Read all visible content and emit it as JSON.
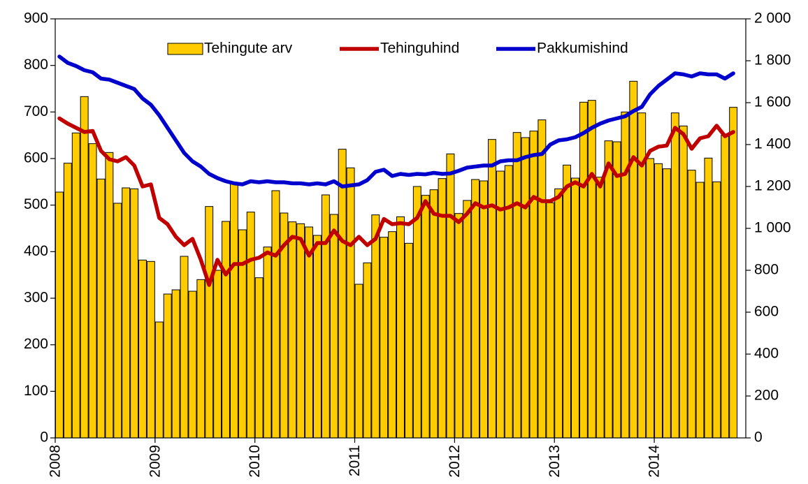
{
  "chart_data": {
    "type": "bar_line",
    "categories": [
      "2008",
      null,
      null,
      null,
      null,
      null,
      null,
      null,
      null,
      null,
      null,
      null,
      "2009",
      null,
      null,
      null,
      null,
      null,
      null,
      null,
      null,
      null,
      null,
      null,
      "2010",
      null,
      null,
      null,
      null,
      null,
      null,
      null,
      null,
      null,
      null,
      null,
      "2011",
      null,
      null,
      null,
      null,
      null,
      null,
      null,
      null,
      null,
      null,
      null,
      "2012",
      null,
      null,
      null,
      null,
      null,
      null,
      null,
      null,
      null,
      null,
      null,
      "2013",
      null,
      null,
      null,
      null,
      null,
      null,
      null,
      null,
      null,
      null,
      null,
      "2014",
      null,
      null,
      null,
      null,
      null,
      null,
      null,
      null,
      null
    ],
    "series": [
      {
        "name": "Tehingute arv",
        "type": "bar",
        "color": "#ffcc00",
        "axis": "y",
        "values": [
          528,
          590,
          655,
          733,
          632,
          556,
          613,
          504,
          537,
          535,
          382,
          379,
          249,
          309,
          318,
          390,
          315,
          340,
          497,
          360,
          465,
          546,
          447,
          485,
          344,
          410,
          531,
          483,
          464,
          460,
          453,
          435,
          522,
          480,
          620,
          580,
          330,
          376,
          479,
          431,
          443,
          475,
          418,
          540,
          521,
          533,
          557,
          610,
          482,
          510,
          555,
          552,
          641,
          573,
          585,
          656,
          645,
          659,
          683,
          505,
          535,
          586,
          558,
          721,
          725,
          560,
          638,
          636,
          700,
          766,
          698,
          600,
          589,
          578,
          698,
          670,
          575,
          549,
          601,
          550,
          650,
          710
        ]
      },
      {
        "name": "Tehinguhind",
        "type": "line",
        "color": "#c00000",
        "axis": "y2",
        "values": [
          1525,
          1500,
          1480,
          1460,
          1465,
          1370,
          1330,
          1320,
          1340,
          1300,
          1200,
          1210,
          1050,
          1020,
          960,
          920,
          950,
          850,
          730,
          850,
          780,
          830,
          830,
          850,
          860,
          885,
          870,
          920,
          960,
          950,
          870,
          930,
          930,
          990,
          940,
          920,
          960,
          920,
          950,
          1045,
          1020,
          1025,
          1020,
          1050,
          1130,
          1070,
          1060,
          1060,
          1030,
          1070,
          1120,
          1100,
          1110,
          1090,
          1100,
          1120,
          1100,
          1150,
          1130,
          1130,
          1150,
          1200,
          1220,
          1200,
          1260,
          1200,
          1310,
          1250,
          1260,
          1340,
          1300,
          1370,
          1390,
          1395,
          1480,
          1450,
          1380,
          1430,
          1440,
          1490,
          1440,
          1460
        ]
      },
      {
        "name": "Pakkumishind",
        "type": "line",
        "color": "#0000cc",
        "axis": "y2",
        "values": [
          1820,
          1790,
          1775,
          1755,
          1745,
          1715,
          1710,
          1695,
          1680,
          1665,
          1620,
          1590,
          1540,
          1480,
          1420,
          1360,
          1320,
          1295,
          1260,
          1240,
          1225,
          1215,
          1210,
          1225,
          1220,
          1225,
          1220,
          1220,
          1215,
          1215,
          1210,
          1215,
          1210,
          1225,
          1200,
          1205,
          1210,
          1230,
          1270,
          1280,
          1250,
          1260,
          1255,
          1260,
          1258,
          1265,
          1260,
          1262,
          1275,
          1290,
          1295,
          1300,
          1300,
          1320,
          1325,
          1325,
          1340,
          1350,
          1355,
          1400,
          1420,
          1425,
          1435,
          1455,
          1480,
          1500,
          1515,
          1525,
          1535,
          1560,
          1580,
          1640,
          1680,
          1710,
          1740,
          1735,
          1725,
          1740,
          1735,
          1735,
          1715,
          1740
        ]
      }
    ],
    "ylim": [
      0,
      900
    ],
    "yticks": [
      0,
      100,
      200,
      300,
      400,
      500,
      600,
      700,
      800,
      900
    ],
    "y2lim": [
      0,
      2000
    ],
    "y2ticks": [
      0,
      200,
      400,
      600,
      800,
      {
        "value": 1000,
        "label": "1 000"
      },
      {
        "value": 1200,
        "label": "1 200"
      },
      {
        "value": 1400,
        "label": "1 400"
      },
      {
        "value": 1600,
        "label": "1 600"
      },
      {
        "value": 1800,
        "label": "1 800"
      },
      {
        "value": 2000,
        "label": "2 000"
      }
    ],
    "legend": "top"
  }
}
